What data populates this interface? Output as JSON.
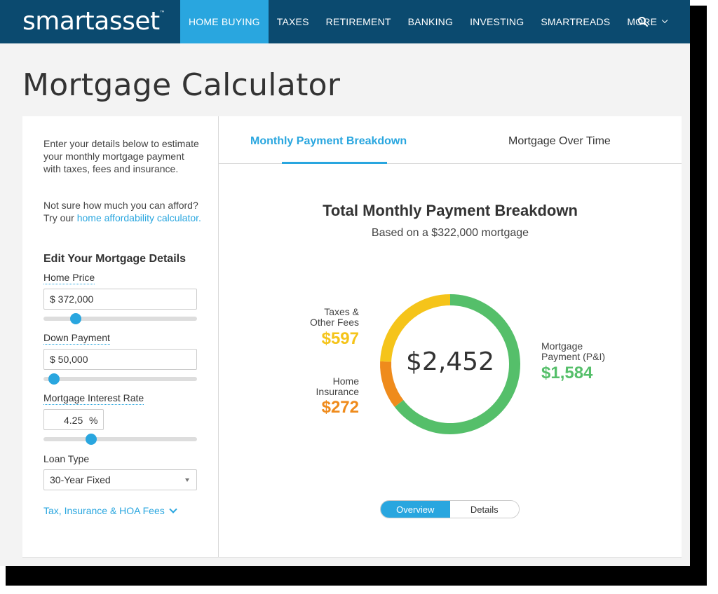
{
  "header": {
    "logo": "smartasset",
    "logo_tm": "™",
    "nav": [
      {
        "label": "HOME BUYING",
        "active": true
      },
      {
        "label": "TAXES",
        "active": false
      },
      {
        "label": "RETIREMENT",
        "active": false
      },
      {
        "label": "BANKING",
        "active": false
      },
      {
        "label": "INVESTING",
        "active": false
      },
      {
        "label": "SMARTREADS",
        "active": false
      },
      {
        "label": "MORE",
        "active": false
      }
    ],
    "search_icon": "search-icon"
  },
  "page_title": "Mortgage Calculator",
  "form": {
    "intro": "Enter your details below to estimate your monthly mortgage payment with taxes, fees and insurance.",
    "intro2_prefix": "Not sure how much you can afford? Try our ",
    "intro2_link": "home affordability calculator.",
    "section_title": "Edit Your Mortgage Details",
    "home_price": {
      "label": "Home Price",
      "value": "$ 372,000",
      "slider_fraction": 0.21
    },
    "down_payment": {
      "label": "Down Payment",
      "value": "$ 50,000",
      "slider_fraction": 0.07
    },
    "interest_rate": {
      "label": "Mortgage Interest Rate",
      "value": "4.25",
      "unit": "%",
      "slider_fraction": 0.31
    },
    "loan_type": {
      "label": "Loan Type",
      "value": "30-Year Fixed"
    },
    "fees_link": "Tax, Insurance & HOA Fees"
  },
  "tabs": [
    {
      "label": "Monthly Payment Breakdown",
      "active": true
    },
    {
      "label": "Mortgage Over Time",
      "active": false
    }
  ],
  "breakdown": {
    "title": "Total Monthly Payment Breakdown",
    "subtitle": "Based on a $322,000 mortgage",
    "total": "$2,452",
    "taxes": {
      "label_line1": "Taxes &",
      "label_line2": "Other Fees",
      "value": "$597",
      "amount": 597,
      "color": "#f5c41a"
    },
    "insurance": {
      "label_line1": "Home",
      "label_line2": "Insurance",
      "value": "$272",
      "amount": 272,
      "color": "#ef8b1c"
    },
    "principal": {
      "label_line1": "Mortgage",
      "label_line2": "Payment (P&I)",
      "value": "$1,584",
      "amount": 1584,
      "color": "#55bf6a"
    }
  },
  "view_toggle": {
    "overview": "Overview",
    "details": "Details",
    "selected": "overview"
  },
  "colors": {
    "brand": "#0b4a6f",
    "accent": "#29a6df"
  }
}
